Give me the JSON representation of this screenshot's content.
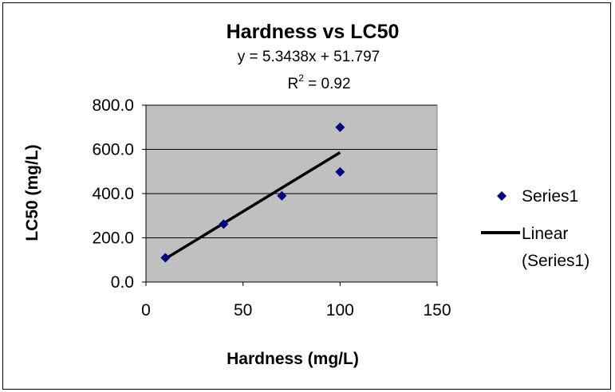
{
  "chart_data": {
    "type": "scatter",
    "title": "Hardness vs LC50",
    "equation": "y = 5.3438x + 51.797",
    "r2_prefix": "R",
    "r2_exponent": "2",
    "r2_value": " = 0.92",
    "xlabel": "Hardness (mg/L)",
    "ylabel": "LC50 (mg/L)",
    "xlim": [
      0,
      150
    ],
    "ylim": [
      0,
      800
    ],
    "x_ticks": [
      "0",
      "50",
      "100",
      "150"
    ],
    "y_ticks": [
      "0.0",
      "200.0",
      "400.0",
      "600.0",
      "800.0"
    ],
    "grid": true,
    "legend_position": "right",
    "series": [
      {
        "name": "Series1",
        "x": [
          10,
          40,
          70,
          100,
          100
        ],
        "y": [
          110,
          262,
          390,
          700,
          498
        ],
        "color": "#000080",
        "marker": "diamond"
      }
    ],
    "trendline": {
      "label_line1": "Linear",
      "label_line2": "(Series1)",
      "slope": 5.3438,
      "intercept": 51.797,
      "x_range": [
        10,
        100
      ],
      "color": "#000000"
    },
    "plot_background": "#c0c0c0"
  }
}
